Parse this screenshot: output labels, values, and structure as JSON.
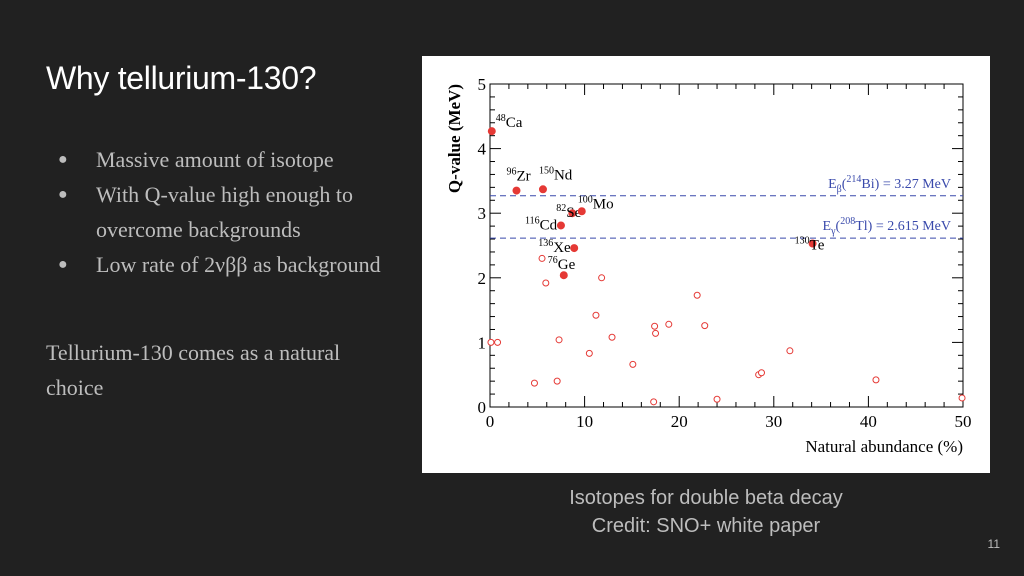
{
  "slide": {
    "title": "Why tellurium-130?",
    "bullets": [
      "Massive amount of isotope",
      "With Q-value high enough to overcome backgrounds",
      "Low rate of 2νββ as background"
    ],
    "conclusion": "Tellurium-130 comes as a natural choice",
    "caption_line1": "Isotopes for double beta decay",
    "caption_line2": "Credit: SNO+ white paper",
    "page_number": "11"
  },
  "chart_data": {
    "type": "scatter",
    "xlabel": "Natural abundance (%)",
    "ylabel": "Q-value (MeV)",
    "xlim": [
      0,
      50
    ],
    "ylim": [
      0,
      5
    ],
    "x_ticks": [
      "0",
      "10",
      "20",
      "30",
      "40",
      "50"
    ],
    "y_ticks": [
      "0",
      "1",
      "2",
      "3",
      "4",
      "5"
    ],
    "grid": false,
    "colors": {
      "points": "#e53935",
      "reference_lines": "#3949ab"
    },
    "labeled_isotopes": [
      {
        "mass": "48",
        "symbol": "Ca",
        "x": 0.19,
        "y": 4.27
      },
      {
        "mass": "96",
        "symbol": "Zr",
        "x": 2.8,
        "y": 3.35
      },
      {
        "mass": "150",
        "symbol": "Nd",
        "x": 5.6,
        "y": 3.37
      },
      {
        "mass": "82",
        "symbol": "Se",
        "x": 8.7,
        "y": 3.0
      },
      {
        "mass": "100",
        "symbol": "Mo",
        "x": 9.7,
        "y": 3.03
      },
      {
        "mass": "116",
        "symbol": "Cd",
        "x": 7.5,
        "y": 2.81
      },
      {
        "mass": "136",
        "symbol": "Xe",
        "x": 8.9,
        "y": 2.46
      },
      {
        "mass": "76",
        "symbol": "Ge",
        "x": 7.8,
        "y": 2.04
      },
      {
        "mass": "130",
        "symbol": "Te",
        "x": 34.1,
        "y": 2.53
      }
    ],
    "other_isotopes": [
      {
        "x": 0.1,
        "y": 1.0
      },
      {
        "x": 0.8,
        "y": 1.0
      },
      {
        "x": 4.7,
        "y": 0.37
      },
      {
        "x": 5.5,
        "y": 2.3
      },
      {
        "x": 5.9,
        "y": 1.92
      },
      {
        "x": 7.1,
        "y": 0.4
      },
      {
        "x": 7.3,
        "y": 1.04
      },
      {
        "x": 10.5,
        "y": 0.83
      },
      {
        "x": 11.2,
        "y": 1.42
      },
      {
        "x": 11.8,
        "y": 2.0
      },
      {
        "x": 12.9,
        "y": 1.08
      },
      {
        "x": 15.1,
        "y": 0.66
      },
      {
        "x": 17.3,
        "y": 0.08
      },
      {
        "x": 17.4,
        "y": 1.25
      },
      {
        "x": 17.5,
        "y": 1.14
      },
      {
        "x": 18.9,
        "y": 1.28
      },
      {
        "x": 21.9,
        "y": 1.73
      },
      {
        "x": 22.7,
        "y": 1.26
      },
      {
        "x": 24.0,
        "y": 0.12
      },
      {
        "x": 28.4,
        "y": 0.5
      },
      {
        "x": 28.7,
        "y": 0.53
      },
      {
        "x": 31.7,
        "y": 0.87
      },
      {
        "x": 40.8,
        "y": 0.42
      },
      {
        "x": 49.9,
        "y": 0.14
      }
    ],
    "reference_lines": [
      {
        "y": 3.27,
        "prefix": "E",
        "sub": "β",
        "mass": "214",
        "element": "Bi",
        "value": ") = 3.27 MeV"
      },
      {
        "y": 2.615,
        "prefix": "E",
        "sub": "γ",
        "mass": "208",
        "element": "Tl",
        "value": ") = 2.615 MeV"
      }
    ]
  }
}
